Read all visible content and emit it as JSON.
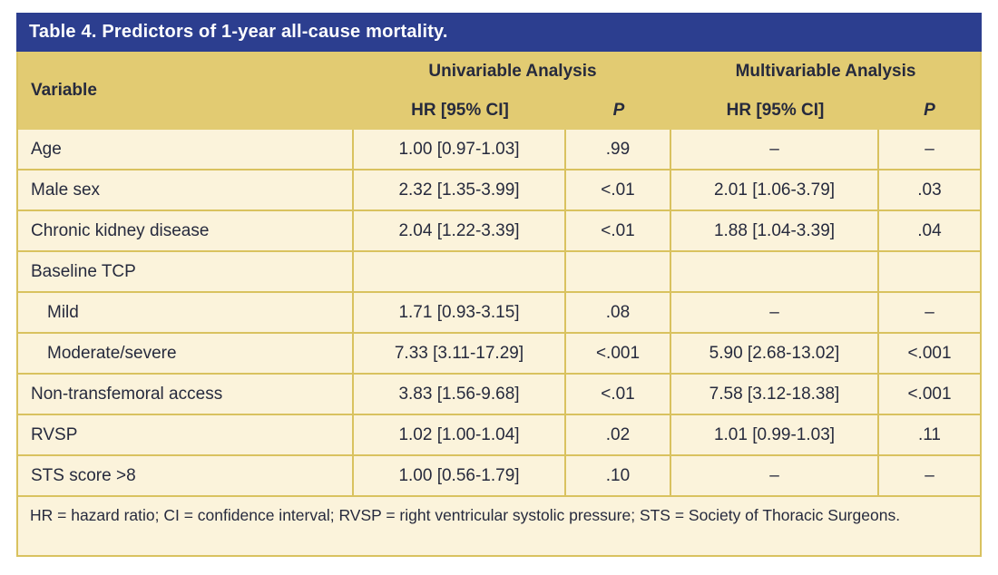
{
  "table": {
    "title": "Table 4. Predictors of 1-year all-cause mortality.",
    "header": {
      "variable": "Variable",
      "uni_group": "Univariable Analysis",
      "multi_group": "Multivariable Analysis",
      "uni_hr_label": "HR [95% CI]",
      "uni_p_label": "P",
      "multi_hr_label": "HR [95% CI]",
      "multi_p_label": "P"
    },
    "rows": [
      {
        "variable": "Age",
        "uni_hr": "1.00 [0.97-1.03]",
        "uni_p": ".99",
        "multi_hr": "–",
        "multi_p": "–"
      },
      {
        "variable": "Male sex",
        "uni_hr": "2.32 [1.35-3.99]",
        "uni_p": "<.01",
        "multi_hr": "2.01 [1.06-3.79]",
        "multi_p": ".03"
      },
      {
        "variable": "Chronic kidney disease",
        "uni_hr": "2.04 [1.22-3.39]",
        "uni_p": "<.01",
        "multi_hr": "1.88 [1.04-3.39]",
        "multi_p": ".04"
      },
      {
        "variable": "Baseline TCP",
        "uni_hr": "",
        "uni_p": "",
        "multi_hr": "",
        "multi_p": ""
      },
      {
        "variable": "Mild",
        "uni_hr": "1.71 [0.93-3.15]",
        "uni_p": ".08",
        "multi_hr": "–",
        "multi_p": "–"
      },
      {
        "variable": "Moderate/severe",
        "uni_hr": "7.33 [3.11-17.29]",
        "uni_p": "<.001",
        "multi_hr": "5.90 [2.68-13.02]",
        "multi_p": "<.001"
      },
      {
        "variable": "Non-transfemoral access",
        "uni_hr": "3.83 [1.56-9.68]",
        "uni_p": "<.01",
        "multi_hr": "7.58 [3.12-18.38]",
        "multi_p": "<.001"
      },
      {
        "variable": "RVSP",
        "uni_hr": "1.02 [1.00-1.04]",
        "uni_p": ".02",
        "multi_hr": "1.01 [0.99-1.03]",
        "multi_p": ".11"
      },
      {
        "variable": "STS score >8",
        "uni_hr": "1.00 [0.56-1.79]",
        "uni_p": ".10",
        "multi_hr": "–",
        "multi_p": "–"
      }
    ],
    "footnote": "HR = hazard ratio; CI = confidence interval; RVSP = right ventricular systolic pressure; STS = Society of Thoracic Surgeons.",
    "colors": {
      "title_bar": "#2C3E8F",
      "header_background": "#E2CB72",
      "row_background": "#FBF3DB",
      "border": "#D9C25F",
      "text": "#262A3D",
      "title_text": "#FFFFFF"
    }
  }
}
